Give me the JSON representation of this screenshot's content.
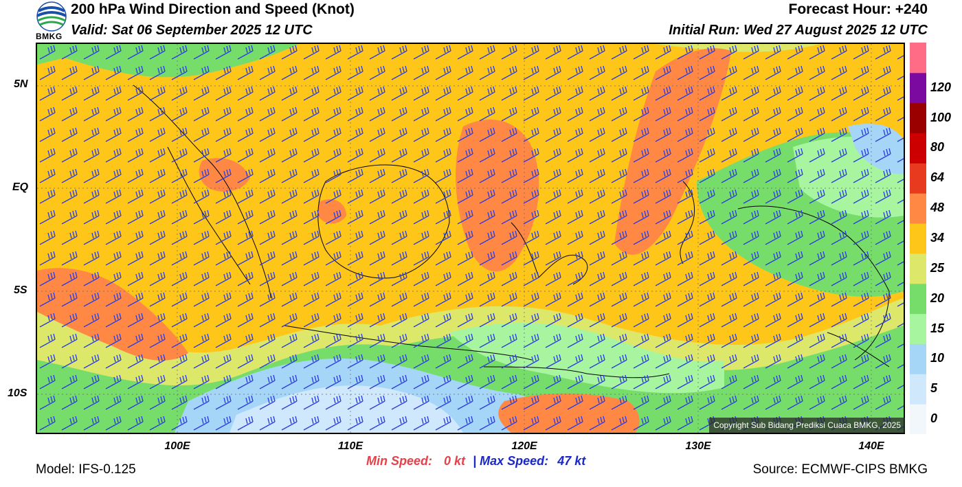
{
  "header": {
    "title": "200 hPa Wind Direction and Speed (Knot)",
    "valid": "Valid: Sat 06 September 2025 12 UTC",
    "forecast_hour": "Forecast Hour: +240",
    "initial_run": "Initial Run: Wed 27 August 2025 12 UTC",
    "logo_text": "BMKG"
  },
  "axes": {
    "lat_labels": [
      "5N",
      "EQ",
      "5S",
      "10S"
    ],
    "lon_labels": [
      "100E",
      "110E",
      "120E",
      "130E",
      "140E"
    ]
  },
  "colorbar": {
    "labels": [
      "0",
      "5",
      "10",
      "15",
      "20",
      "25",
      "34",
      "48",
      "64",
      "80",
      "100",
      "120"
    ],
    "colors": [
      "#f2f7fc",
      "#cfe8fb",
      "#a6d6f7",
      "#a8f5a0",
      "#77dd6a",
      "#dde86a",
      "#ffc61a",
      "#ff8845",
      "#e83a1e",
      "#cc0000",
      "#9a0000",
      "#7a0aa0",
      "#ff6c86"
    ]
  },
  "stats": {
    "min_label": "Min Speed:",
    "min_value": "0 kt",
    "separator": "|",
    "max_label": "Max Speed:",
    "max_value": "47 kt"
  },
  "footer": {
    "model": "Model: IFS-0.125",
    "source": "Source: ECMWF-CIPS BMKG",
    "copyright": "Copyright Sub Bidang Prediksi Cuaca BMKG, 2025"
  }
}
